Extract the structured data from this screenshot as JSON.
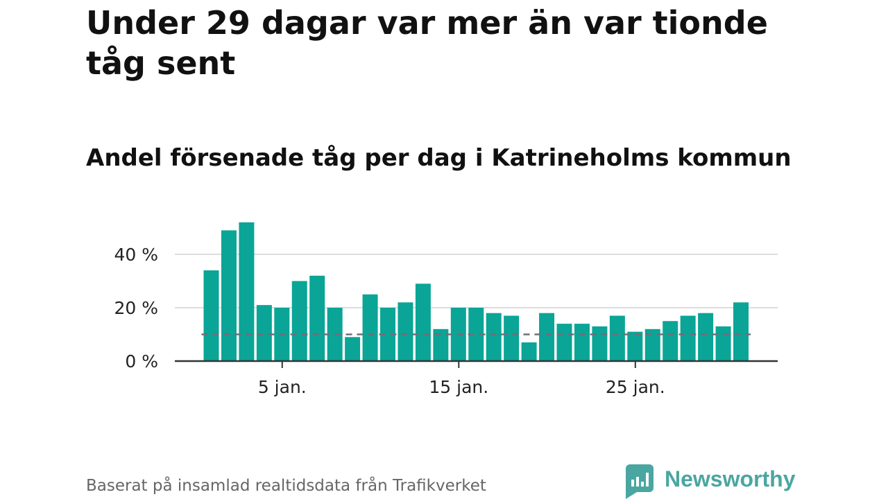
{
  "title": "Under 29 dagar var mer än var tionde tåg sent",
  "subtitle": "Andel försenade tåg per dag i Katrineholms kommun",
  "source": "Baserat på insamlad realtidsdata från Trafikverket",
  "brand": {
    "name": "Newsworthy",
    "color": "#4aa6a0"
  },
  "colors": {
    "bar": "#0aa596",
    "reference_line": "#6e6e7a",
    "grid": "#dddddd",
    "axis": "#333333"
  },
  "chart_data": {
    "type": "bar",
    "x": [
      1,
      2,
      3,
      4,
      5,
      6,
      7,
      8,
      9,
      10,
      11,
      12,
      13,
      14,
      15,
      16,
      17,
      18,
      19,
      20,
      21,
      22,
      23,
      24,
      25,
      26,
      27,
      28,
      29,
      30,
      31
    ],
    "values": [
      34,
      49,
      52,
      21,
      20,
      30,
      32,
      20,
      9,
      25,
      20,
      22,
      29,
      12,
      20,
      20,
      18,
      17,
      7,
      18,
      14,
      14,
      13,
      17,
      11,
      12,
      15,
      17,
      18,
      13,
      22
    ],
    "reference_line": 10,
    "ylim": [
      0,
      52
    ],
    "yticks": [
      0,
      20,
      40
    ],
    "ytick_labels": [
      "0 %",
      "20 %",
      "40 %"
    ],
    "xticks": [
      5,
      15,
      25
    ],
    "xtick_labels": [
      "5 jan.",
      "15 jan.",
      "25 jan."
    ],
    "grid": true
  }
}
